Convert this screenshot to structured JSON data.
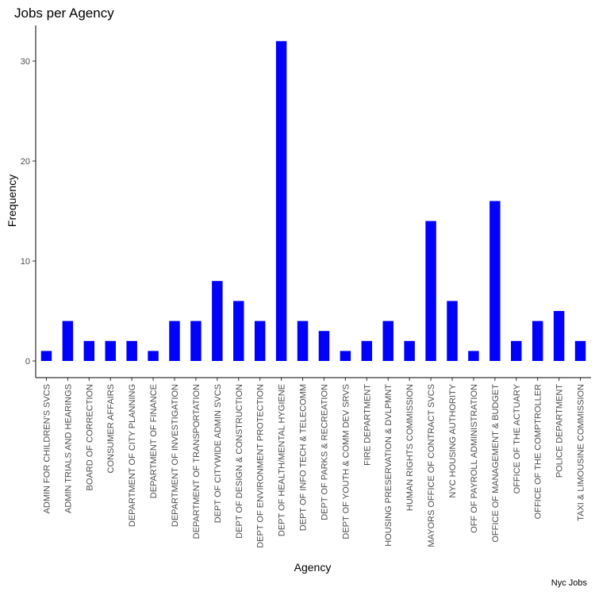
{
  "chart_data": {
    "type": "bar",
    "title": "Jobs per Agency",
    "xlabel": "Agency",
    "ylabel": "Frequency",
    "caption": "Nyc Jobs",
    "ylim": [
      0,
      32
    ],
    "yticks": [
      0,
      10,
      20,
      30
    ],
    "bar_color": "#0000ff",
    "grid": false,
    "categories": [
      "ADMIN FOR CHILDREN'S SVCS",
      "ADMIN TRIALS AND HEARINGS",
      "BOARD OF CORRECTION",
      "CONSUMER AFFAIRS",
      "DEPARTMENT OF CITY PLANNING",
      "DEPARTMENT OF FINANCE",
      "DEPARTMENT OF INVESTIGATION",
      "DEPARTMENT OF TRANSPORTATION",
      "DEPT OF CITYWIDE ADMIN SVCS",
      "DEPT OF DESIGN & CONSTRUCTION",
      "DEPT OF ENVIRONMENT PROTECTION",
      "DEPT OF HEALTH/MENTAL HYGIENE",
      "DEPT OF INFO TECH & TELECOMM",
      "DEPT OF PARKS & RECREATION",
      "DEPT OF YOUTH & COMM DEV SRVS",
      "FIRE DEPARTMENT",
      "HOUSING PRESERVATION & DVLPMNT",
      "HUMAN RIGHTS COMMISSION",
      "MAYORS OFFICE OF CONTRACT SVCS",
      "NYC HOUSING AUTHORITY",
      "OFF OF PAYROLL ADMINISTRATION",
      "OFFICE OF MANAGEMENT & BUDGET",
      "OFFICE OF THE ACTUARY",
      "OFFICE OF THE COMPTROLLER",
      "POLICE DEPARTMENT",
      "TAXI & LIMOUSINE COMMISSION"
    ],
    "values": [
      1,
      4,
      2,
      2,
      2,
      1,
      4,
      4,
      8,
      6,
      4,
      32,
      4,
      3,
      1,
      2,
      4,
      2,
      14,
      6,
      1,
      16,
      2,
      4,
      5,
      2
    ]
  }
}
